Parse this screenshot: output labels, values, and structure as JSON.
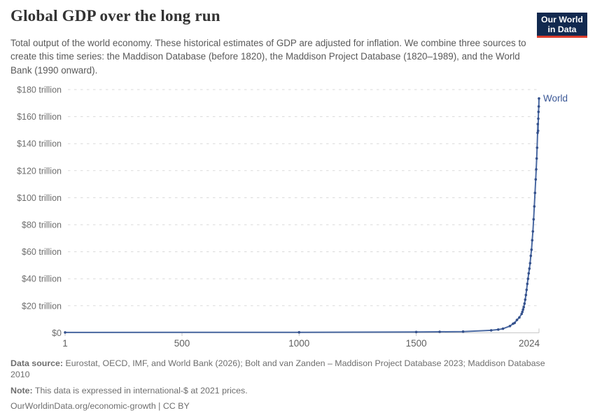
{
  "header": {
    "title": "Global GDP over the long run",
    "subtitle": "Total output of the world economy. These historical estimates of GDP are adjusted for inflation. We combine three sources to create this time series: the Maddison Database (before 1820), the Maddison Project Database (1820–1989), and the World Bank (1990 onward).",
    "logo": {
      "line1": "Our World",
      "line2": "in Data",
      "bg_color": "#12294f",
      "accent_color": "#dc3c2b"
    }
  },
  "chart_data": {
    "type": "line",
    "title": "Global GDP over the long run",
    "unit": "international-$ in 2021 prices",
    "xlim": [
      1,
      2024
    ],
    "ylim": [
      0,
      180
    ],
    "grid": "horizontal-dashed",
    "legend": "series-end-label",
    "x_ticks": [
      {
        "v": 1,
        "label": "1"
      },
      {
        "v": 500,
        "label": "500"
      },
      {
        "v": 1000,
        "label": "1000"
      },
      {
        "v": 1500,
        "label": "1500"
      },
      {
        "v": 2024,
        "label": "2024"
      }
    ],
    "y_ticks": [
      {
        "v": 0,
        "label": "$0"
      },
      {
        "v": 20,
        "label": "$20 trillion"
      },
      {
        "v": 40,
        "label": "$40 trillion"
      },
      {
        "v": 60,
        "label": "$60 trillion"
      },
      {
        "v": 80,
        "label": "$80 trillion"
      },
      {
        "v": 100,
        "label": "$100 trillion"
      },
      {
        "v": 120,
        "label": "$120 trillion"
      },
      {
        "v": 140,
        "label": "$140 trillion"
      },
      {
        "v": 160,
        "label": "$160 trillion"
      },
      {
        "v": 180,
        "label": "$180 trillion"
      }
    ],
    "series": [
      {
        "name": "World",
        "color": "#4a69a2",
        "marker_color": "#35518c",
        "label_color": "#3a5796",
        "points": [
          [
            1,
            0.25
          ],
          [
            1000,
            0.35
          ],
          [
            1500,
            0.58
          ],
          [
            1600,
            0.72
          ],
          [
            1700,
            0.9
          ],
          [
            1820,
            1.8
          ],
          [
            1850,
            2.4
          ],
          [
            1870,
            3.0
          ],
          [
            1900,
            5.0
          ],
          [
            1913,
            6.7
          ],
          [
            1920,
            7.3
          ],
          [
            1930,
            9.5
          ],
          [
            1940,
            11.3
          ],
          [
            1950,
            14.0
          ],
          [
            1953,
            15.5
          ],
          [
            1956,
            17.2
          ],
          [
            1959,
            19.0
          ],
          [
            1962,
            21.6
          ],
          [
            1965,
            24.5
          ],
          [
            1968,
            28.0
          ],
          [
            1971,
            31.8
          ],
          [
            1974,
            36.2
          ],
          [
            1977,
            40.0
          ],
          [
            1980,
            44.0
          ],
          [
            1983,
            47.5
          ],
          [
            1986,
            51.5
          ],
          [
            1989,
            57.0
          ],
          [
            1992,
            61.5
          ],
          [
            1995,
            68.5
          ],
          [
            1998,
            75.0
          ],
          [
            2001,
            84.0
          ],
          [
            2004,
            93.5
          ],
          [
            2007,
            103.5
          ],
          [
            2010,
            113.5
          ],
          [
            2012,
            121.0
          ],
          [
            2014,
            129.0
          ],
          [
            2016,
            137.0
          ],
          [
            2018,
            148.0
          ],
          [
            2019,
            154.5
          ],
          [
            2020,
            149.5
          ],
          [
            2021,
            158.5
          ],
          [
            2022,
            163.5
          ],
          [
            2023,
            167.5
          ],
          [
            2024,
            173.4
          ]
        ]
      }
    ]
  },
  "footer": {
    "data_source_label": "Data source:",
    "data_source": "Eurostat, OECD, IMF, and World Bank (2026); Bolt and van Zanden – Maddison Project Database 2023; Maddison Database 2010",
    "note_label": "Note:",
    "note": "This data is expressed in international-$ at 2021 prices.",
    "citation": "OurWorldinData.org/economic-growth | CC BY"
  }
}
